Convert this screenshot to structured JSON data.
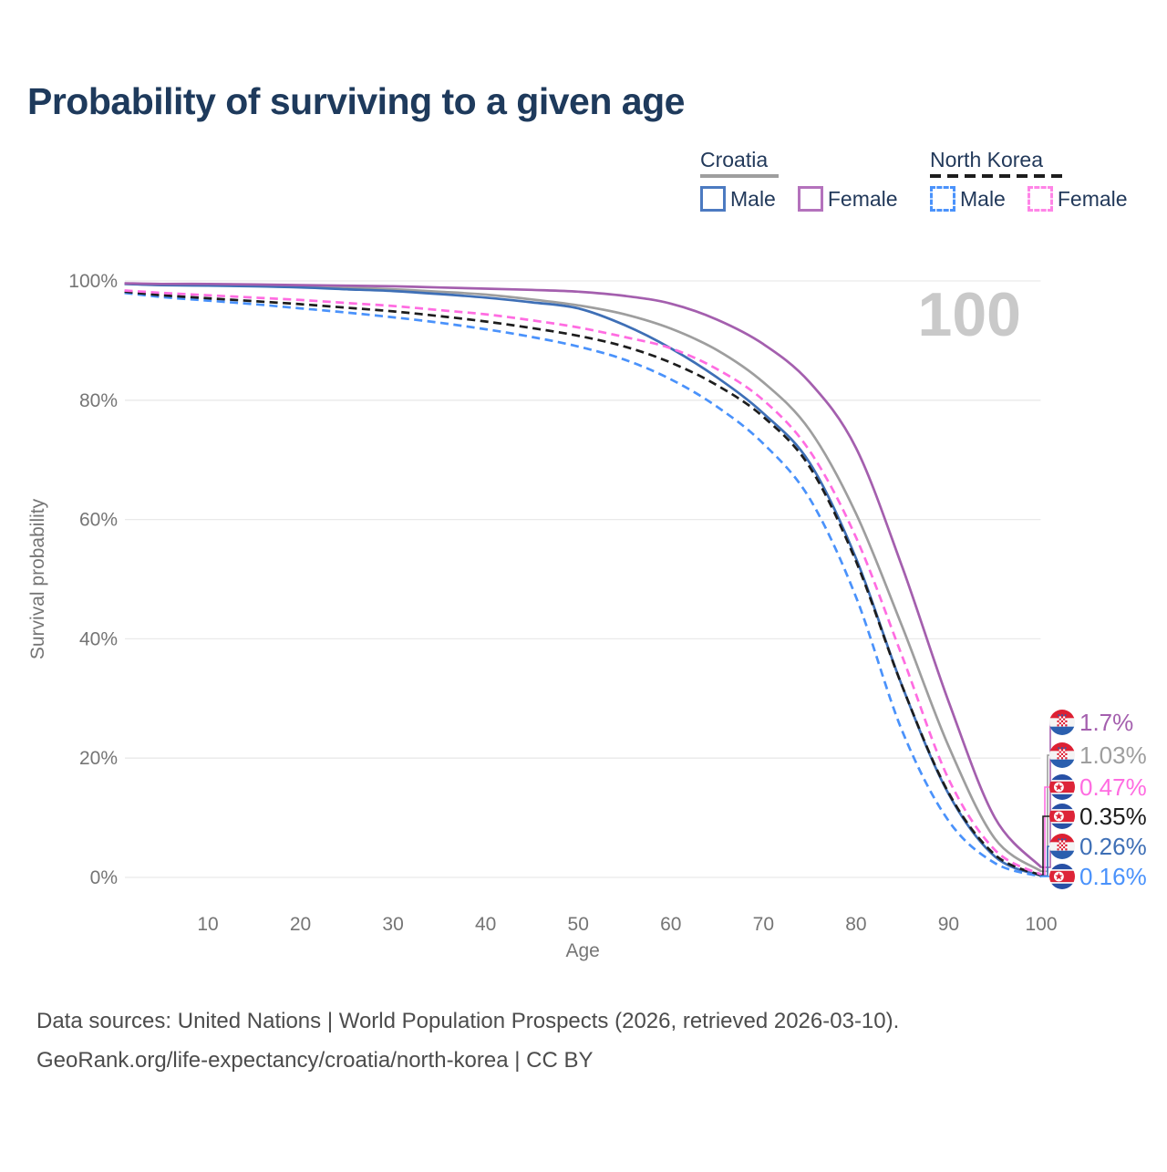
{
  "title": "Probability of surviving to a given age",
  "legend": {
    "groups": [
      {
        "id": "croatia",
        "label": "Croatia",
        "rule_color": "#9e9e9e",
        "rule_style": "solid",
        "items": [
          {
            "id": "croatia-male",
            "label": "Male",
            "color": "#4c7ac1",
            "dashed": false
          },
          {
            "id": "croatia-female",
            "label": "Female",
            "color": "#b472bc",
            "dashed": false
          }
        ]
      },
      {
        "id": "north-korea",
        "label": "North Korea",
        "rule_color": "#1d1d1d",
        "rule_style": "dashed",
        "items": [
          {
            "id": "nk-male",
            "label": "Male",
            "color": "#4a92fb",
            "dashed": true
          },
          {
            "id": "nk-female",
            "label": "Female",
            "color": "#ff85e7",
            "dashed": true
          }
        ]
      }
    ]
  },
  "chart_data": {
    "type": "line",
    "title": "Probability of surviving to a given age",
    "xlabel": "Age",
    "ylabel": "Survival probability",
    "xlim": [
      1,
      100
    ],
    "ylim": [
      0,
      100
    ],
    "grid": "horizontal",
    "legend_position": "top-right",
    "age_watermark": "100",
    "x_ticks": [
      10,
      20,
      30,
      40,
      50,
      60,
      70,
      80,
      90,
      100
    ],
    "y_ticks": [
      {
        "label": "0%",
        "value": 0
      },
      {
        "label": "20%",
        "value": 20
      },
      {
        "label": "40%",
        "value": 40
      },
      {
        "label": "60%",
        "value": 60
      },
      {
        "label": "80%",
        "value": 80
      },
      {
        "label": "100%",
        "value": 100
      }
    ],
    "x": [
      1,
      5,
      10,
      15,
      20,
      25,
      30,
      35,
      40,
      45,
      50,
      55,
      60,
      65,
      70,
      75,
      80,
      85,
      90,
      95,
      100
    ],
    "series": [
      {
        "id": "croatia-all",
        "name": "Croatia",
        "country": "Croatia",
        "sex": "Both",
        "color": "#9e9e9e",
        "dashed": false,
        "end_label": "1.03%",
        "flag": "croatia",
        "values": [
          99.5,
          99.4,
          99.3,
          99.2,
          99.1,
          98.9,
          98.6,
          98.2,
          97.7,
          96.9,
          95.9,
          94.4,
          92.0,
          88.4,
          83.0,
          75.0,
          61.0,
          42.0,
          22.0,
          6.5,
          1.03
        ]
      },
      {
        "id": "croatia-male",
        "name": "Croatia Male",
        "country": "Croatia",
        "sex": "Male",
        "color": "#3e6fb6",
        "dashed": false,
        "end_label": "0.26%",
        "flag": "croatia",
        "values": [
          99.5,
          99.3,
          99.2,
          99.1,
          98.9,
          98.6,
          98.3,
          97.8,
          97.2,
          96.4,
          95.4,
          92.6,
          88.7,
          83.8,
          77.8,
          69.5,
          53.5,
          32.0,
          14.0,
          3.5,
          0.26
        ]
      },
      {
        "id": "croatia-female",
        "name": "Croatia Female",
        "country": "Croatia",
        "sex": "Female",
        "color": "#a45fae",
        "dashed": false,
        "end_label": "1.7%",
        "flag": "croatia",
        "values": [
          99.6,
          99.5,
          99.5,
          99.4,
          99.3,
          99.2,
          99.1,
          98.9,
          98.7,
          98.5,
          98.2,
          97.5,
          96.2,
          93.5,
          89.4,
          83.0,
          72.0,
          52.0,
          29.5,
          10.0,
          1.7
        ]
      },
      {
        "id": "nk-male",
        "name": "North Korea Male",
        "country": "North Korea",
        "sex": "Male",
        "color": "#4a92fb",
        "dashed": true,
        "end_label": "0.16%",
        "flag": "north-korea",
        "values": [
          98.0,
          97.3,
          96.7,
          96.1,
          95.4,
          94.7,
          93.9,
          93.0,
          91.9,
          90.6,
          89.0,
          86.8,
          83.5,
          78.9,
          72.7,
          63.5,
          47.0,
          24.5,
          9.5,
          2.4,
          0.16
        ]
      },
      {
        "id": "nk-all",
        "name": "North Korea",
        "country": "North Korea",
        "sex": "Both",
        "color": "#1d1d1d",
        "dashed": true,
        "end_label": "0.35%",
        "flag": "north-korea",
        "values": [
          98.2,
          97.6,
          97.1,
          96.6,
          96.1,
          95.5,
          94.9,
          94.1,
          93.2,
          92.1,
          90.8,
          89.0,
          86.3,
          82.5,
          77.2,
          68.8,
          53.0,
          32.0,
          14.2,
          3.8,
          0.35
        ]
      },
      {
        "id": "nk-female",
        "name": "North Korea Female",
        "country": "North Korea",
        "sex": "Female",
        "color": "#ff6ce1",
        "dashed": true,
        "end_label": "0.47%",
        "flag": "north-korea",
        "values": [
          98.4,
          98.0,
          97.6,
          97.2,
          96.8,
          96.3,
          95.8,
          95.1,
          94.4,
          93.4,
          92.2,
          90.6,
          88.7,
          85.2,
          80.0,
          71.5,
          57.0,
          37.0,
          16.5,
          4.6,
          0.47
        ]
      }
    ]
  },
  "footer": {
    "line1": "Data sources: United Nations | World Population Prospects (2026, retrieved 2026-03-10).",
    "line2": "GeoRank.org/life-expectancy/croatia/north-korea | CC BY"
  },
  "colors": {
    "title_text": "#1e3a5c",
    "legend_text": "#22395a",
    "axis_text": "#757575",
    "grid_line": "#e9e9e9",
    "watermark": "#c9c9c9",
    "footer_text": "#4c4c4c",
    "croatia_flag_red": "#dd2033",
    "croatia_flag_blue": "#2b5fae",
    "nk_flag_red": "#dd2438",
    "nk_flag_blue": "#2750a5"
  }
}
